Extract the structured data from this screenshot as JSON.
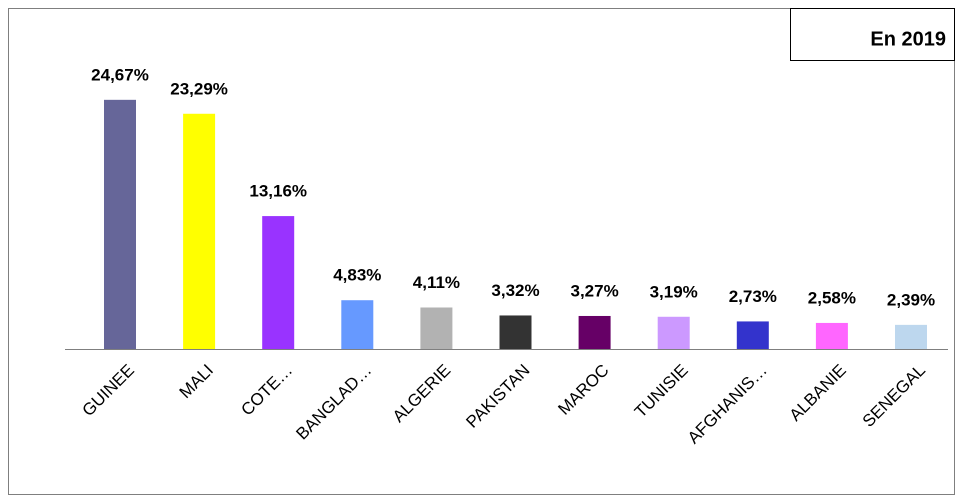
{
  "chart_data": {
    "type": "bar",
    "annotation": "En 2019",
    "categories": [
      "GUINEE",
      "MALI",
      "COTE…",
      "BANGLAD…",
      "ALGERIE",
      "PAKISTAN",
      "MAROC",
      "TUNISIE",
      "AFGHANIS…",
      "ALBANIE",
      "SENEGAL"
    ],
    "values": [
      24.67,
      23.29,
      13.16,
      4.83,
      4.11,
      3.32,
      3.27,
      3.19,
      2.73,
      2.58,
      2.39
    ],
    "value_labels": [
      "24,67%",
      "23,29%",
      "13,16%",
      "4,83%",
      "4,11%",
      "3,32%",
      "3,27%",
      "3,19%",
      "2,73%",
      "2,58%",
      "2,39%"
    ],
    "colors": [
      "#666699",
      "#ffff00",
      "#9933ff",
      "#6699ff",
      "#b2b2b2",
      "#333333",
      "#660066",
      "#cc99ff",
      "#3333cc",
      "#ff66ff",
      "#bdd7ee"
    ]
  }
}
